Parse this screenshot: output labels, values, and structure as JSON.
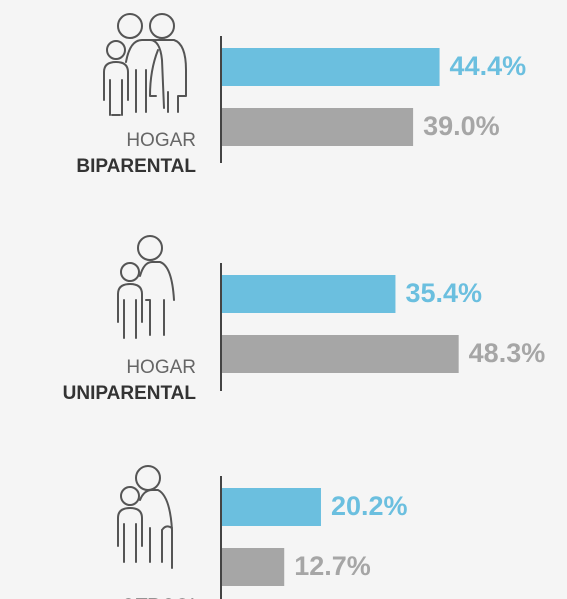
{
  "chart_data": {
    "type": "bar",
    "categories": [
      [
        "HOGAR",
        "BIPARENTAL"
      ],
      [
        "HOGAR",
        "UNIPARENTAL"
      ],
      [
        "OTROS*"
      ]
    ],
    "series": [
      {
        "color": "#6bbfdf",
        "values": [
          44.4,
          35.4,
          20.2
        ],
        "value_labels": [
          "44.4%",
          "35.4%",
          "20.2%"
        ]
      },
      {
        "color": "#a6a6a6",
        "values": [
          39.0,
          48.3,
          12.7
        ],
        "value_labels": [
          "39.0%",
          "48.3%",
          "12.7%"
        ]
      }
    ]
  }
}
